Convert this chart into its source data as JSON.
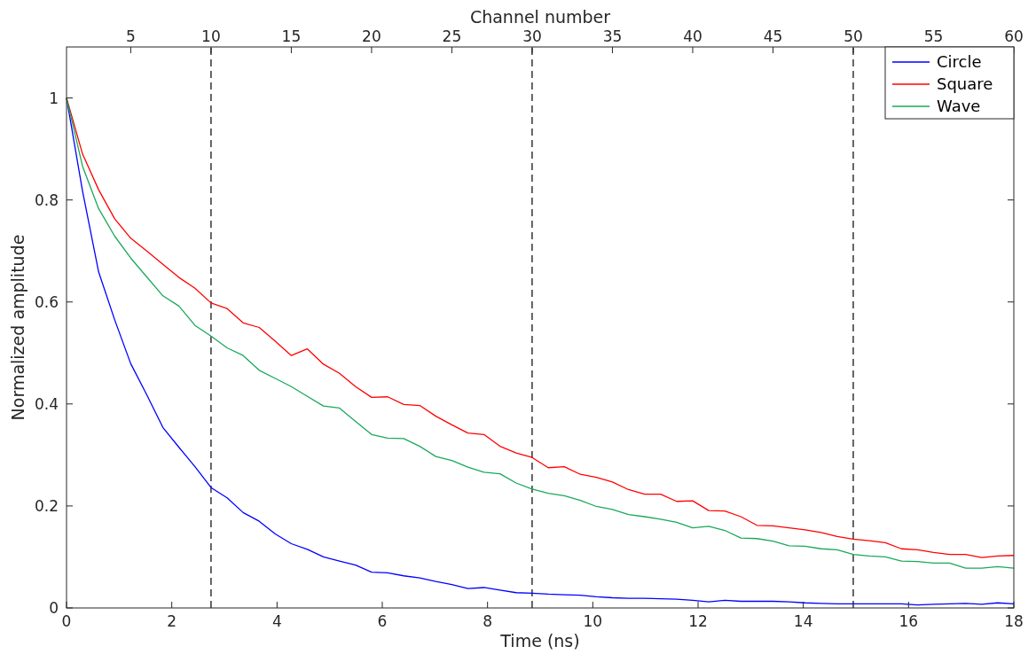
{
  "chart_data": {
    "type": "line",
    "xlabel": "Time (ns)",
    "ylabel": "Normalized amplitude",
    "x2label": "Channel number",
    "x": [
      0,
      0.305,
      0.61,
      0.915,
      1.22,
      1.525,
      1.831,
      2.136,
      2.441,
      2.746,
      3.051,
      3.356,
      3.661,
      3.966,
      4.271,
      4.576,
      4.881,
      5.186,
      5.492,
      5.797,
      6.102,
      6.407,
      6.712,
      7.017,
      7.322,
      7.627,
      7.932,
      8.237,
      8.542,
      8.847,
      9.153,
      9.458,
      9.763,
      10.068,
      10.373,
      10.678,
      10.983,
      11.288,
      11.593,
      11.898,
      12.203,
      12.508,
      12.814,
      13.119,
      13.424,
      13.729,
      14.034,
      14.339,
      14.644,
      14.949,
      15.254,
      15.559,
      15.864,
      16.169,
      16.475,
      16.78,
      17.085,
      17.39,
      17.695,
      18
    ],
    "series": [
      {
        "name": "Circle",
        "color": "#0000ff",
        "values": [
          1.0,
          0.817,
          0.659,
          0.565,
          0.479,
          0.418,
          0.354,
          0.315,
          0.277,
          0.236,
          0.216,
          0.187,
          0.17,
          0.145,
          0.126,
          0.115,
          0.1,
          0.092,
          0.084,
          0.07,
          0.069,
          0.063,
          0.059,
          0.052,
          0.046,
          0.038,
          0.04,
          0.035,
          0.03,
          0.029,
          0.027,
          0.026,
          0.025,
          0.022,
          0.02,
          0.019,
          0.019,
          0.018,
          0.017,
          0.015,
          0.012,
          0.015,
          0.013,
          0.013,
          0.013,
          0.012,
          0.01,
          0.009,
          0.008,
          0.008,
          0.008,
          0.008,
          0.008,
          0.006,
          0.007,
          0.008,
          0.009,
          0.007,
          0.01,
          0.008
        ]
      },
      {
        "name": "Square",
        "color": "#ff0000",
        "values": [
          1.0,
          0.89,
          0.82,
          0.763,
          0.725,
          0.7,
          0.674,
          0.648,
          0.627,
          0.598,
          0.587,
          0.559,
          0.55,
          0.523,
          0.495,
          0.508,
          0.478,
          0.46,
          0.434,
          0.413,
          0.414,
          0.399,
          0.397,
          0.376,
          0.359,
          0.343,
          0.34,
          0.317,
          0.304,
          0.295,
          0.275,
          0.277,
          0.262,
          0.256,
          0.247,
          0.232,
          0.223,
          0.223,
          0.209,
          0.21,
          0.191,
          0.19,
          0.179,
          0.162,
          0.161,
          0.157,
          0.153,
          0.148,
          0.14,
          0.135,
          0.132,
          0.128,
          0.116,
          0.114,
          0.109,
          0.105,
          0.105,
          0.099,
          0.102,
          0.103
        ]
      },
      {
        "name": "Wave",
        "color": "#1aa85a",
        "values": [
          1.0,
          0.866,
          0.783,
          0.729,
          0.686,
          0.649,
          0.612,
          0.592,
          0.554,
          0.533,
          0.51,
          0.495,
          0.466,
          0.45,
          0.434,
          0.415,
          0.396,
          0.392,
          0.366,
          0.34,
          0.333,
          0.332,
          0.317,
          0.297,
          0.289,
          0.276,
          0.266,
          0.263,
          0.245,
          0.233,
          0.225,
          0.22,
          0.211,
          0.199,
          0.193,
          0.183,
          0.179,
          0.174,
          0.168,
          0.157,
          0.16,
          0.152,
          0.137,
          0.136,
          0.131,
          0.122,
          0.121,
          0.116,
          0.114,
          0.105,
          0.102,
          0.1,
          0.092,
          0.091,
          0.088,
          0.088,
          0.078,
          0.078,
          0.081,
          0.078
        ]
      }
    ],
    "xlim": [
      0,
      18
    ],
    "xticks": [
      0,
      2,
      4,
      6,
      8,
      10,
      12,
      14,
      16,
      18
    ],
    "x2lim": [
      1,
      60
    ],
    "x2ticks": [
      5,
      10,
      15,
      20,
      25,
      30,
      35,
      40,
      45,
      50,
      55,
      60
    ],
    "ylim": [
      0,
      1.1
    ],
    "yticks": [
      0,
      0.2,
      0.4,
      0.6,
      0.8,
      1
    ],
    "ref_lines": [
      {
        "axis": "x",
        "value": 2.746,
        "line_style": "dashed"
      },
      {
        "axis": "x",
        "value": 8.847,
        "line_style": "dashed"
      },
      {
        "axis": "x",
        "value": 14.949,
        "line_style": "dashed"
      }
    ],
    "legend": "top right",
    "grid": false,
    "marker": "none",
    "line_style": "solid"
  }
}
